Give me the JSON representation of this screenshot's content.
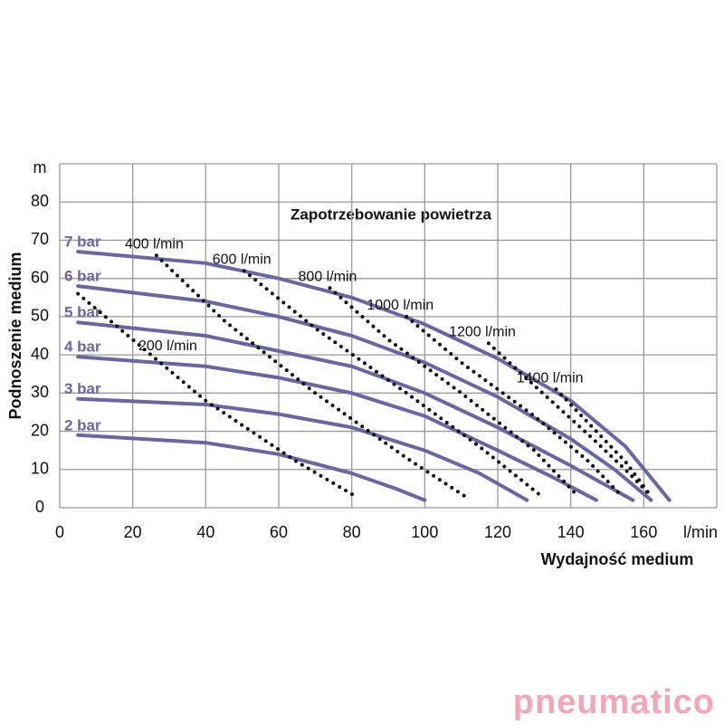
{
  "chart_data": {
    "type": "line",
    "title": "Zapotrzebowanie powietrza",
    "x_label": "Wydajność medium",
    "y_label": "Podnoszenie medium",
    "x_unit": "l/min",
    "y_unit": "m",
    "xlim": [
      0,
      180
    ],
    "ylim": [
      0,
      90
    ],
    "xticks": [
      0,
      20,
      40,
      60,
      80,
      100,
      120,
      140,
      160
    ],
    "yticks": [
      0,
      10,
      20,
      30,
      40,
      50,
      60,
      70,
      80
    ],
    "grid": true,
    "watermark": "pneumatico",
    "series": [
      {
        "name": "7 bar",
        "color": "#6a679e",
        "style": "solid",
        "x": [
          5,
          40,
          60,
          80,
          100,
          120,
          140,
          155,
          167
        ],
        "values": [
          67,
          64,
          60,
          55,
          48,
          39,
          28,
          16,
          2
        ]
      },
      {
        "name": "6 bar",
        "color": "#6a679e",
        "style": "solid",
        "x": [
          5,
          40,
          60,
          80,
          100,
          120,
          140,
          152,
          162
        ],
        "values": [
          58,
          54,
          50,
          45,
          38,
          29,
          18,
          10,
          2
        ]
      },
      {
        "name": "5 bar",
        "color": "#6a679e",
        "style": "solid",
        "x": [
          5,
          40,
          60,
          80,
          100,
          120,
          140,
          157
        ],
        "values": [
          48.5,
          45,
          41,
          37,
          30,
          21,
          11,
          2
        ]
      },
      {
        "name": "4 bar",
        "color": "#6a679e",
        "style": "solid",
        "x": [
          5,
          40,
          60,
          80,
          100,
          120,
          135,
          147
        ],
        "values": [
          39.5,
          37,
          34,
          30,
          24,
          15,
          8,
          2
        ]
      },
      {
        "name": "3 bar",
        "color": "#6a679e",
        "style": "solid",
        "x": [
          5,
          40,
          60,
          80,
          100,
          115,
          128
        ],
        "values": [
          28.5,
          27,
          24.5,
          21,
          15,
          9,
          2
        ]
      },
      {
        "name": "2 bar",
        "color": "#6a679e",
        "style": "solid",
        "x": [
          5,
          40,
          60,
          80,
          92,
          100
        ],
        "values": [
          19,
          17,
          14,
          9,
          5,
          2
        ]
      },
      {
        "name": "200 l/min",
        "color": "#111111",
        "style": "dotted",
        "x": [
          5,
          40,
          65,
          81
        ],
        "values": [
          56,
          28,
          12,
          3
        ]
      },
      {
        "name": "400 l/min",
        "color": "#111111",
        "style": "dotted",
        "x": [
          26.5,
          45,
          70,
          95,
          111
        ],
        "values": [
          66,
          49,
          30,
          13,
          3
        ]
      },
      {
        "name": "600 l/min",
        "color": "#111111",
        "style": "dotted",
        "x": [
          50.5,
          70,
          95,
          115,
          132
        ],
        "values": [
          62,
          47,
          30,
          16,
          3
        ]
      },
      {
        "name": "800 l/min",
        "color": "#111111",
        "style": "dotted",
        "x": [
          74,
          90,
          110,
          130,
          142
        ],
        "values": [
          57.5,
          44,
          30,
          15,
          3
        ]
      },
      {
        "name": "1000 l/min",
        "color": "#111111",
        "style": "dotted",
        "x": [
          95,
          110,
          130,
          145,
          154
        ],
        "values": [
          50,
          38,
          24,
          12,
          3
        ]
      },
      {
        "name": "1200 l/min",
        "color": "#111111",
        "style": "dotted",
        "x": [
          117.5,
          130,
          145,
          156,
          162
        ],
        "values": [
          43,
          32,
          19,
          9,
          3
        ]
      },
      {
        "name": "1400 l/min",
        "color": "#111111",
        "style": "dotted",
        "x": [
          136,
          145,
          155,
          162
        ],
        "values": [
          31,
          22,
          12,
          3
        ]
      }
    ]
  }
}
